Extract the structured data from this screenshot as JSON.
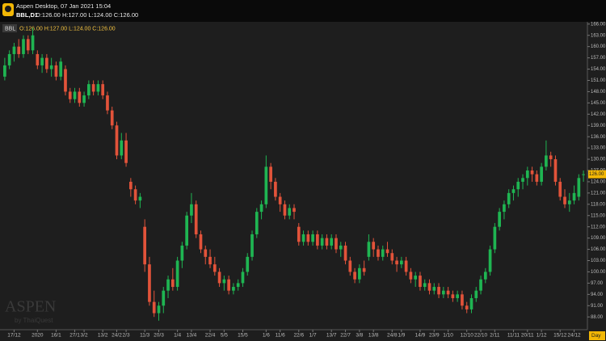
{
  "header": {
    "app_title": "Aspen Desktop, 07 Jan 2021 15:04",
    "symbol": "BBL,D1",
    "ohlc_text": "O:126.00 H:127.00 L:124.00 C:126.00"
  },
  "chart_data": {
    "type": "candlestick",
    "symbol": "BBL",
    "legend": "O:126.00 H:127.00 L:124.00 C:126.00",
    "categories": [
      null,
      null,
      "17/12",
      null,
      null,
      null,
      null,
      "2020",
      null,
      null,
      null,
      "16/1",
      null,
      null,
      null,
      "27/1",
      null,
      "3/2",
      null,
      null,
      null,
      "13/2",
      null,
      null,
      "24/2",
      null,
      "2/3",
      null,
      null,
      null,
      "11/3",
      null,
      null,
      "20/3",
      null,
      null,
      null,
      "1/4",
      null,
      null,
      "13/4",
      null,
      null,
      null,
      "22/4",
      null,
      null,
      "5/5",
      null,
      null,
      null,
      "15/5",
      null,
      null,
      null,
      null,
      "1/6",
      null,
      null,
      "11/6",
      null,
      null,
      null,
      "22/6",
      null,
      null,
      "1/7",
      null,
      null,
      null,
      "13/7",
      null,
      null,
      "22/7",
      null,
      null,
      "3/8",
      null,
      null,
      "13/8",
      null,
      null,
      null,
      "24/8",
      null,
      "1/9",
      null,
      null,
      null,
      "14/9",
      null,
      null,
      "23/9",
      null,
      null,
      "1/10",
      null,
      null,
      null,
      "12/10",
      null,
      null,
      "22/10",
      null,
      null,
      "2/11",
      null,
      null,
      null,
      "11/11",
      null,
      null,
      "20/11",
      null,
      null,
      "1/12",
      null,
      null,
      null,
      "15/12",
      null,
      null,
      "24/12",
      null,
      null
    ],
    "ohlc": [
      [
        152,
        157,
        151,
        155
      ],
      [
        155,
        159,
        154,
        158
      ],
      [
        158,
        161,
        156,
        160
      ],
      [
        160,
        162,
        157,
        158
      ],
      [
        158,
        163,
        157,
        162
      ],
      [
        162,
        163,
        158,
        159
      ],
      [
        159,
        165,
        158,
        163
      ],
      [
        158,
        159,
        154,
        155
      ],
      [
        155,
        158,
        153,
        157
      ],
      [
        157,
        158,
        153,
        154
      ],
      [
        154,
        157,
        152,
        155
      ],
      [
        155,
        156,
        151,
        152
      ],
      [
        152,
        157,
        151,
        156
      ],
      [
        154,
        155,
        147,
        148
      ],
      [
        148,
        149,
        145,
        146
      ],
      [
        146,
        149,
        145,
        148
      ],
      [
        148,
        149,
        144,
        145
      ],
      [
        145,
        148,
        144,
        147
      ],
      [
        147,
        151,
        146,
        150
      ],
      [
        150,
        151,
        147,
        148
      ],
      [
        148,
        151,
        147,
        150
      ],
      [
        150,
        151,
        146,
        147
      ],
      [
        147,
        148,
        142,
        143
      ],
      [
        143,
        144,
        138,
        139
      ],
      [
        139,
        140,
        130,
        131
      ],
      [
        131,
        137,
        130,
        135
      ],
      [
        135,
        137,
        128,
        129
      ],
      [
        124,
        125,
        120,
        122
      ],
      [
        122,
        123,
        118,
        119
      ],
      [
        119,
        121,
        117,
        120
      ],
      [
        112,
        114,
        100,
        102
      ],
      [
        102,
        104,
        91,
        92
      ],
      [
        92,
        95,
        88,
        89
      ],
      [
        89,
        92,
        87,
        91
      ],
      [
        91,
        96,
        89,
        95
      ],
      [
        95,
        99,
        93,
        98
      ],
      [
        98,
        101,
        95,
        96
      ],
      [
        96,
        104,
        95,
        103
      ],
      [
        103,
        108,
        101,
        107
      ],
      [
        107,
        116,
        106,
        115
      ],
      [
        115,
        121,
        113,
        118
      ],
      [
        118,
        119,
        109,
        110
      ],
      [
        110,
        111,
        105,
        106
      ],
      [
        106,
        107,
        102,
        104
      ],
      [
        104,
        106,
        101,
        102
      ],
      [
        102,
        104,
        99,
        100
      ],
      [
        100,
        101,
        96,
        97
      ],
      [
        97,
        99,
        95,
        98
      ],
      [
        98,
        99,
        94,
        95
      ],
      [
        95,
        97,
        94,
        96
      ],
      [
        96,
        98,
        95,
        97
      ],
      [
        97,
        101,
        96,
        100
      ],
      [
        100,
        105,
        99,
        104
      ],
      [
        104,
        111,
        103,
        110
      ],
      [
        110,
        117,
        109,
        116
      ],
      [
        116,
        119,
        114,
        118
      ],
      [
        118,
        131,
        117,
        128
      ],
      [
        128,
        129,
        122,
        124
      ],
      [
        124,
        125,
        119,
        120
      ],
      [
        120,
        121,
        116,
        118
      ],
      [
        118,
        119,
        114,
        115
      ],
      [
        115,
        118,
        114,
        117
      ],
      [
        117,
        118,
        114,
        116
      ],
      [
        112,
        113,
        107,
        108
      ],
      [
        108,
        111,
        107,
        110
      ],
      [
        110,
        111,
        107,
        108
      ],
      [
        108,
        111,
        107,
        110
      ],
      [
        110,
        111,
        106,
        107
      ],
      [
        107,
        110,
        106,
        109
      ],
      [
        109,
        110,
        106,
        107
      ],
      [
        107,
        110,
        106,
        109
      ],
      [
        109,
        110,
        105,
        106
      ],
      [
        106,
        108,
        104,
        107
      ],
      [
        107,
        108,
        102,
        103
      ],
      [
        103,
        104,
        99,
        100
      ],
      [
        100,
        101,
        97,
        98
      ],
      [
        98,
        102,
        97,
        101
      ],
      [
        101,
        103,
        99,
        100
      ],
      [
        104,
        110,
        103,
        108
      ],
      [
        108,
        109,
        104,
        106
      ],
      [
        106,
        107,
        103,
        104
      ],
      [
        104,
        107,
        103,
        106
      ],
      [
        106,
        108,
        104,
        105
      ],
      [
        105,
        106,
        102,
        103
      ],
      [
        103,
        104,
        100,
        102
      ],
      [
        102,
        104,
        101,
        103
      ],
      [
        103,
        104,
        99,
        100
      ],
      [
        100,
        101,
        97,
        98
      ],
      [
        98,
        100,
        96,
        99
      ],
      [
        99,
        100,
        95,
        96
      ],
      [
        96,
        98,
        95,
        97
      ],
      [
        97,
        98,
        94,
        95
      ],
      [
        95,
        97,
        94,
        96
      ],
      [
        96,
        97,
        93,
        94
      ],
      [
        94,
        96,
        93,
        95
      ],
      [
        95,
        96,
        93,
        94
      ],
      [
        94,
        95,
        92,
        93
      ],
      [
        93,
        95,
        92,
        94
      ],
      [
        94,
        95,
        90,
        91
      ],
      [
        91,
        92,
        89,
        90
      ],
      [
        90,
        94,
        89,
        93
      ],
      [
        93,
        96,
        92,
        95
      ],
      [
        95,
        99,
        94,
        98
      ],
      [
        98,
        101,
        97,
        100
      ],
      [
        100,
        107,
        99,
        106
      ],
      [
        106,
        113,
        105,
        112
      ],
      [
        112,
        117,
        111,
        116
      ],
      [
        116,
        119,
        114,
        118
      ],
      [
        118,
        122,
        117,
        121
      ],
      [
        121,
        123,
        119,
        122
      ],
      [
        122,
        125,
        120,
        124
      ],
      [
        124,
        126,
        122,
        125
      ],
      [
        125,
        128,
        123,
        127
      ],
      [
        127,
        128,
        124,
        126
      ],
      [
        126,
        127,
        123,
        124
      ],
      [
        124,
        129,
        123,
        128
      ],
      [
        128,
        135,
        127,
        131
      ],
      [
        131,
        132,
        128,
        130
      ],
      [
        130,
        131,
        123,
        124
      ],
      [
        124,
        125,
        119,
        120
      ],
      [
        120,
        122,
        117,
        118
      ],
      [
        118,
        121,
        116,
        119
      ],
      [
        119,
        123,
        118,
        121
      ],
      [
        120,
        126,
        119,
        125
      ],
      [
        126,
        127,
        124,
        126
      ]
    ],
    "up_color": "#1fb552",
    "down_color": "#e2533a",
    "ylim": [
      84.6,
      166.6
    ],
    "yticks": [
      {
        "value": 88,
        "label": "88.00"
      },
      {
        "value": 91,
        "label": "91.00"
      },
      {
        "value": 94,
        "label": "94.00"
      },
      {
        "value": 97,
        "label": "97.00"
      },
      {
        "value": 100,
        "label": "100.00"
      },
      {
        "value": 103,
        "label": "103.00"
      },
      {
        "value": 106,
        "label": "106.00"
      },
      {
        "value": 109,
        "label": "109.00"
      },
      {
        "value": 112,
        "label": "112.00"
      },
      {
        "value": 115,
        "label": "115.00"
      },
      {
        "value": 118,
        "label": "118.00"
      },
      {
        "value": 121,
        "label": "121.00"
      },
      {
        "value": 124,
        "label": "124.00"
      },
      {
        "value": 127,
        "label": "127.00"
      },
      {
        "value": 130,
        "label": "130.00"
      },
      {
        "value": 133,
        "label": "133.00"
      },
      {
        "value": 136,
        "label": "136.00"
      },
      {
        "value": 139,
        "label": "139.00"
      },
      {
        "value": 142,
        "label": "142.00"
      },
      {
        "value": 145,
        "label": "145.00"
      },
      {
        "value": 148,
        "label": "148.00"
      },
      {
        "value": 151,
        "label": "151.00"
      },
      {
        "value": 154,
        "label": "154.00"
      },
      {
        "value": 157,
        "label": "157.00"
      },
      {
        "value": 160,
        "label": "160.00"
      },
      {
        "value": 163,
        "label": "163.00"
      },
      {
        "value": 166,
        "label": "166.00"
      }
    ],
    "last_price": {
      "value": 126,
      "label": "126.00"
    },
    "period_label": "Day",
    "watermark": "ASPEN",
    "watermark_sub": "by ThaiQuest"
  }
}
